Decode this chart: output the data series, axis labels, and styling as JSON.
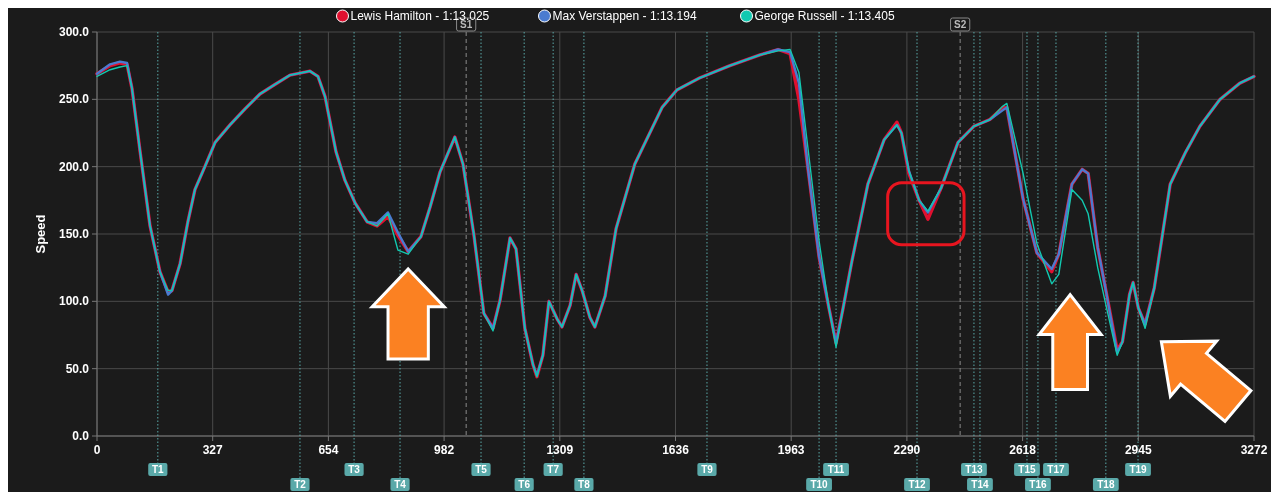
{
  "chart_data": {
    "type": "line",
    "ylabel": "Speed",
    "legend": "top",
    "grid": true,
    "marker": "none",
    "line_style": "solid",
    "xlim": [
      0,
      3272
    ],
    "ylim": [
      0,
      300
    ],
    "xticks": [
      {
        "value": 0,
        "label": "0"
      },
      {
        "value": 327.2,
        "label": "327"
      },
      {
        "value": 654.4,
        "label": "654"
      },
      {
        "value": 981.6,
        "label": "982"
      },
      {
        "value": 1308.8,
        "label": "1309"
      },
      {
        "value": 1636,
        "label": "1636"
      },
      {
        "value": 1963.2,
        "label": "1963"
      },
      {
        "value": 2290.4,
        "label": "2290"
      },
      {
        "value": 2617.6,
        "label": "2618"
      },
      {
        "value": 2944.8,
        "label": "2945"
      },
      {
        "value": 3272,
        "label": "3272"
      }
    ],
    "yticks": [
      {
        "value": 0,
        "label": "0.0"
      },
      {
        "value": 50,
        "label": "50.0"
      },
      {
        "value": 100,
        "label": "100.0"
      },
      {
        "value": 150,
        "label": "150.0"
      },
      {
        "value": 200,
        "label": "200.0"
      },
      {
        "value": 250,
        "label": "250.0"
      },
      {
        "value": 300,
        "label": "300.0"
      }
    ],
    "x": [
      0,
      37,
      65,
      85,
      99,
      122,
      150,
      178,
      201,
      212,
      235,
      257,
      277,
      305,
      334,
      376,
      419,
      461,
      503,
      546,
      602,
      625,
      645,
      676,
      701,
      730,
      764,
      792,
      823,
      851,
      880,
      916,
      942,
      970,
      1012,
      1035,
      1066,
      1094,
      1120,
      1140,
      1168,
      1185,
      1210,
      1233,
      1244,
      1261,
      1278,
      1301,
      1315,
      1338,
      1355,
      1372,
      1394,
      1408,
      1437,
      1468,
      1521,
      1598,
      1640,
      1705,
      1790,
      1875,
      1926,
      1960,
      1985,
      2010,
      2042,
      2070,
      2090,
      2110,
      2135,
      2180,
      2226,
      2262,
      2275,
      2296,
      2325,
      2350,
      2387,
      2435,
      2480,
      2525,
      2562,
      2573,
      2619,
      2658,
      2700,
      2720,
      2757,
      2786,
      2803,
      2830,
      2851,
      2885,
      2900,
      2920,
      2930,
      2945,
      2964,
      2990,
      3035,
      3077,
      3119,
      3176,
      3232,
      3272
    ],
    "series": [
      {
        "name": "Lewis Hamilton - 1:13.025",
        "color": "#e0102f",
        "values": [
          269,
          275,
          277,
          276,
          258,
          211,
          156,
          122,
          107,
          108,
          128,
          159,
          183,
          200,
          218,
          231,
          243,
          254,
          261,
          268,
          271,
          267,
          252,
          211,
          190,
          173,
          159,
          156,
          163,
          149,
          137,
          148,
          170,
          196,
          222,
          202,
          149,
          91,
          80,
          101,
          147,
          139,
          80,
          53,
          44,
          60,
          100,
          87,
          81,
          97,
          120,
          108,
          88,
          81,
          104,
          154,
          202,
          244,
          257,
          266,
          275,
          283,
          287,
          284,
          250,
          200,
          133,
          95,
          69,
          95,
          130,
          187,
          220,
          233,
          225,
          195,
          175,
          161,
          184,
          218,
          230,
          235,
          244,
          244,
          176,
          136,
          122,
          135,
          187,
          198,
          195,
          140,
          111,
          64,
          70,
          105,
          114,
          95,
          83,
          110,
          187,
          210,
          230,
          250,
          262,
          267
        ]
      },
      {
        "name": "Max Verstappen - 1:13.194",
        "color": "#4a7bd0",
        "values": [
          269,
          276,
          278,
          277,
          258,
          211,
          156,
          122,
          105,
          108,
          128,
          159,
          183,
          200,
          218,
          231,
          243,
          254,
          261,
          268,
          271,
          267,
          252,
          211,
          190,
          173,
          159,
          158,
          166,
          151,
          137,
          148,
          170,
          196,
          222,
          202,
          149,
          91,
          80,
          101,
          147,
          139,
          80,
          53,
          45,
          60,
          100,
          87,
          81,
          97,
          120,
          108,
          88,
          81,
          104,
          154,
          202,
          244,
          257,
          266,
          275,
          283,
          287,
          285,
          262,
          200,
          133,
          95,
          69,
          95,
          130,
          187,
          220,
          231,
          225,
          197,
          175,
          166,
          184,
          218,
          230,
          235,
          242,
          244,
          176,
          136,
          124,
          135,
          187,
          198,
          195,
          140,
          111,
          62,
          70,
          105,
          114,
          95,
          83,
          110,
          187,
          210,
          230,
          250,
          262,
          267
        ]
      },
      {
        "name": "George Russell - 1:13.405",
        "color": "#12c9b0",
        "values": [
          267,
          272,
          274,
          275,
          258,
          211,
          156,
          122,
          108,
          108,
          128,
          159,
          183,
          200,
          218,
          231,
          243,
          254,
          261,
          268,
          271,
          267,
          252,
          211,
          190,
          173,
          159,
          156,
          165,
          138,
          135,
          148,
          170,
          196,
          222,
          202,
          150,
          91,
          78,
          101,
          147,
          139,
          80,
          53,
          44,
          60,
          100,
          87,
          81,
          97,
          120,
          108,
          88,
          81,
          104,
          154,
          202,
          244,
          257,
          266,
          275,
          283,
          286,
          287,
          270,
          215,
          145,
          95,
          66,
          95,
          130,
          187,
          220,
          231,
          225,
          197,
          175,
          167,
          184,
          218,
          230,
          235,
          245,
          247,
          195,
          143,
          113,
          120,
          183,
          175,
          165,
          125,
          100,
          60,
          70,
          105,
          114,
          95,
          80,
          110,
          187,
          210,
          230,
          250,
          262,
          267
        ]
      }
    ],
    "ref_lines": [
      {
        "axis": "x",
        "value": 172,
        "label": "T1",
        "color": "#5aa9a9",
        "line_style": "dotted"
      },
      {
        "axis": "x",
        "value": 574,
        "label": "T2",
        "color": "#5aa9a9",
        "line_style": "dotted"
      },
      {
        "axis": "x",
        "value": 727,
        "label": "T3",
        "color": "#5aa9a9",
        "line_style": "dotted"
      },
      {
        "axis": "x",
        "value": 857,
        "label": "T4",
        "color": "#5aa9a9",
        "line_style": "dotted"
      },
      {
        "axis": "x",
        "value": 1086,
        "label": "T5",
        "color": "#5aa9a9",
        "line_style": "dotted"
      },
      {
        "axis": "x",
        "value": 1208,
        "label": "T6",
        "color": "#5aa9a9",
        "line_style": "dotted"
      },
      {
        "axis": "x",
        "value": 1290,
        "label": "T7",
        "color": "#5aa9a9",
        "line_style": "dotted"
      },
      {
        "axis": "x",
        "value": 1377,
        "label": "T8",
        "color": "#5aa9a9",
        "line_style": "dotted"
      },
      {
        "axis": "x",
        "value": 1725,
        "label": "T9",
        "color": "#5aa9a9",
        "line_style": "dotted"
      },
      {
        "axis": "x",
        "value": 2042,
        "label": "T10",
        "color": "#5aa9a9",
        "line_style": "dotted"
      },
      {
        "axis": "x",
        "value": 2090,
        "label": "T11",
        "color": "#5aa9a9",
        "line_style": "dotted"
      },
      {
        "axis": "x",
        "value": 2319,
        "label": "T12",
        "color": "#5aa9a9",
        "line_style": "dotted"
      },
      {
        "axis": "x",
        "value": 2480,
        "label": "T13",
        "color": "#5aa9a9",
        "line_style": "dotted"
      },
      {
        "axis": "x",
        "value": 2497,
        "label": "T14",
        "color": "#5aa9a9",
        "line_style": "dotted"
      },
      {
        "axis": "x",
        "value": 2630,
        "label": "T15",
        "color": "#5aa9a9",
        "line_style": "dotted"
      },
      {
        "axis": "x",
        "value": 2661,
        "label": "T16",
        "color": "#5aa9a9",
        "line_style": "dotted"
      },
      {
        "axis": "x",
        "value": 2712,
        "label": "T17",
        "color": "#5aa9a9",
        "line_style": "dotted"
      },
      {
        "axis": "x",
        "value": 2853,
        "label": "T18",
        "color": "#5aa9a9",
        "line_style": "dotted"
      },
      {
        "axis": "x",
        "value": 2944,
        "label": "T19",
        "color": "#5aa9a9",
        "line_style": "dotted"
      },
      {
        "axis": "x",
        "value": 1044,
        "label": "S1",
        "color": "#8a8a8a",
        "line_style": "dashed"
      },
      {
        "axis": "x",
        "value": 2441,
        "label": "S2",
        "color": "#8a8a8a",
        "line_style": "dashed"
      }
    ]
  }
}
